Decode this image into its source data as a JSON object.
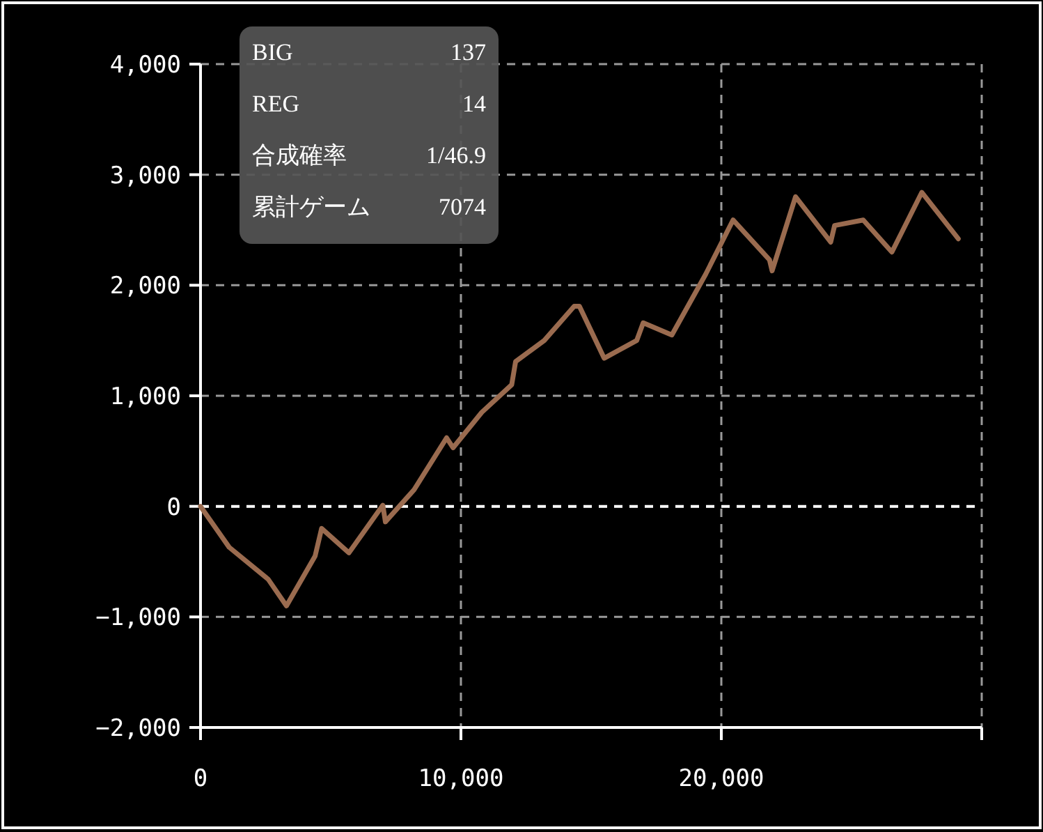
{
  "chart_data": {
    "type": "line",
    "x": [
      0,
      1100,
      2500,
      2600,
      3300,
      4400,
      4650,
      5700,
      7000,
      7100,
      8200,
      9450,
      9700,
      10800,
      11950,
      12100,
      13200,
      14350,
      14550,
      15500,
      16750,
      17000,
      18100,
      19400,
      20450,
      21850,
      21950,
      22850,
      24200,
      24350,
      25450,
      26550,
      27700,
      29100
    ],
    "series": [
      {
        "color": "#9a6b4f",
        "values": [
          0,
          -370,
          -640,
          -660,
          -900,
          -450,
          -200,
          -420,
          10,
          -140,
          150,
          620,
          530,
          850,
          1100,
          1310,
          1500,
          1810,
          1810,
          1340,
          1500,
          1660,
          1550,
          2100,
          2590,
          2230,
          2130,
          2800,
          2390,
          2540,
          2590,
          2300,
          2840,
          2420
        ]
      }
    ],
    "xlim": [
      0,
      30000
    ],
    "xticks": [
      {
        "value": 0,
        "label": "0"
      },
      {
        "value": 10000,
        "label": "10,000"
      },
      {
        "value": 20000,
        "label": "20,000"
      },
      {
        "value": 30000,
        "label": null
      }
    ],
    "ylim": [
      -2000,
      4000
    ],
    "yticks": [
      {
        "value": -2000,
        "label": "−2,000"
      },
      {
        "value": -1000,
        "label": "−1,000"
      },
      {
        "value": 0,
        "label": "0"
      },
      {
        "value": 1000,
        "label": "1,000"
      },
      {
        "value": 2000,
        "label": "2,000"
      },
      {
        "value": 3000,
        "label": "3,000"
      },
      {
        "value": 4000,
        "label": "4,000"
      }
    ],
    "grid": true,
    "line_style": "solid",
    "marker": "none",
    "ref_lines": [
      {
        "axis": "y",
        "value": 0,
        "color": "#ffffff",
        "line_style": "dashed"
      }
    ],
    "annotations": [
      "BIG",
      "137",
      "REG",
      "14",
      "合成確率",
      "1/46.9",
      "累計ゲーム",
      "7074"
    ]
  }
}
